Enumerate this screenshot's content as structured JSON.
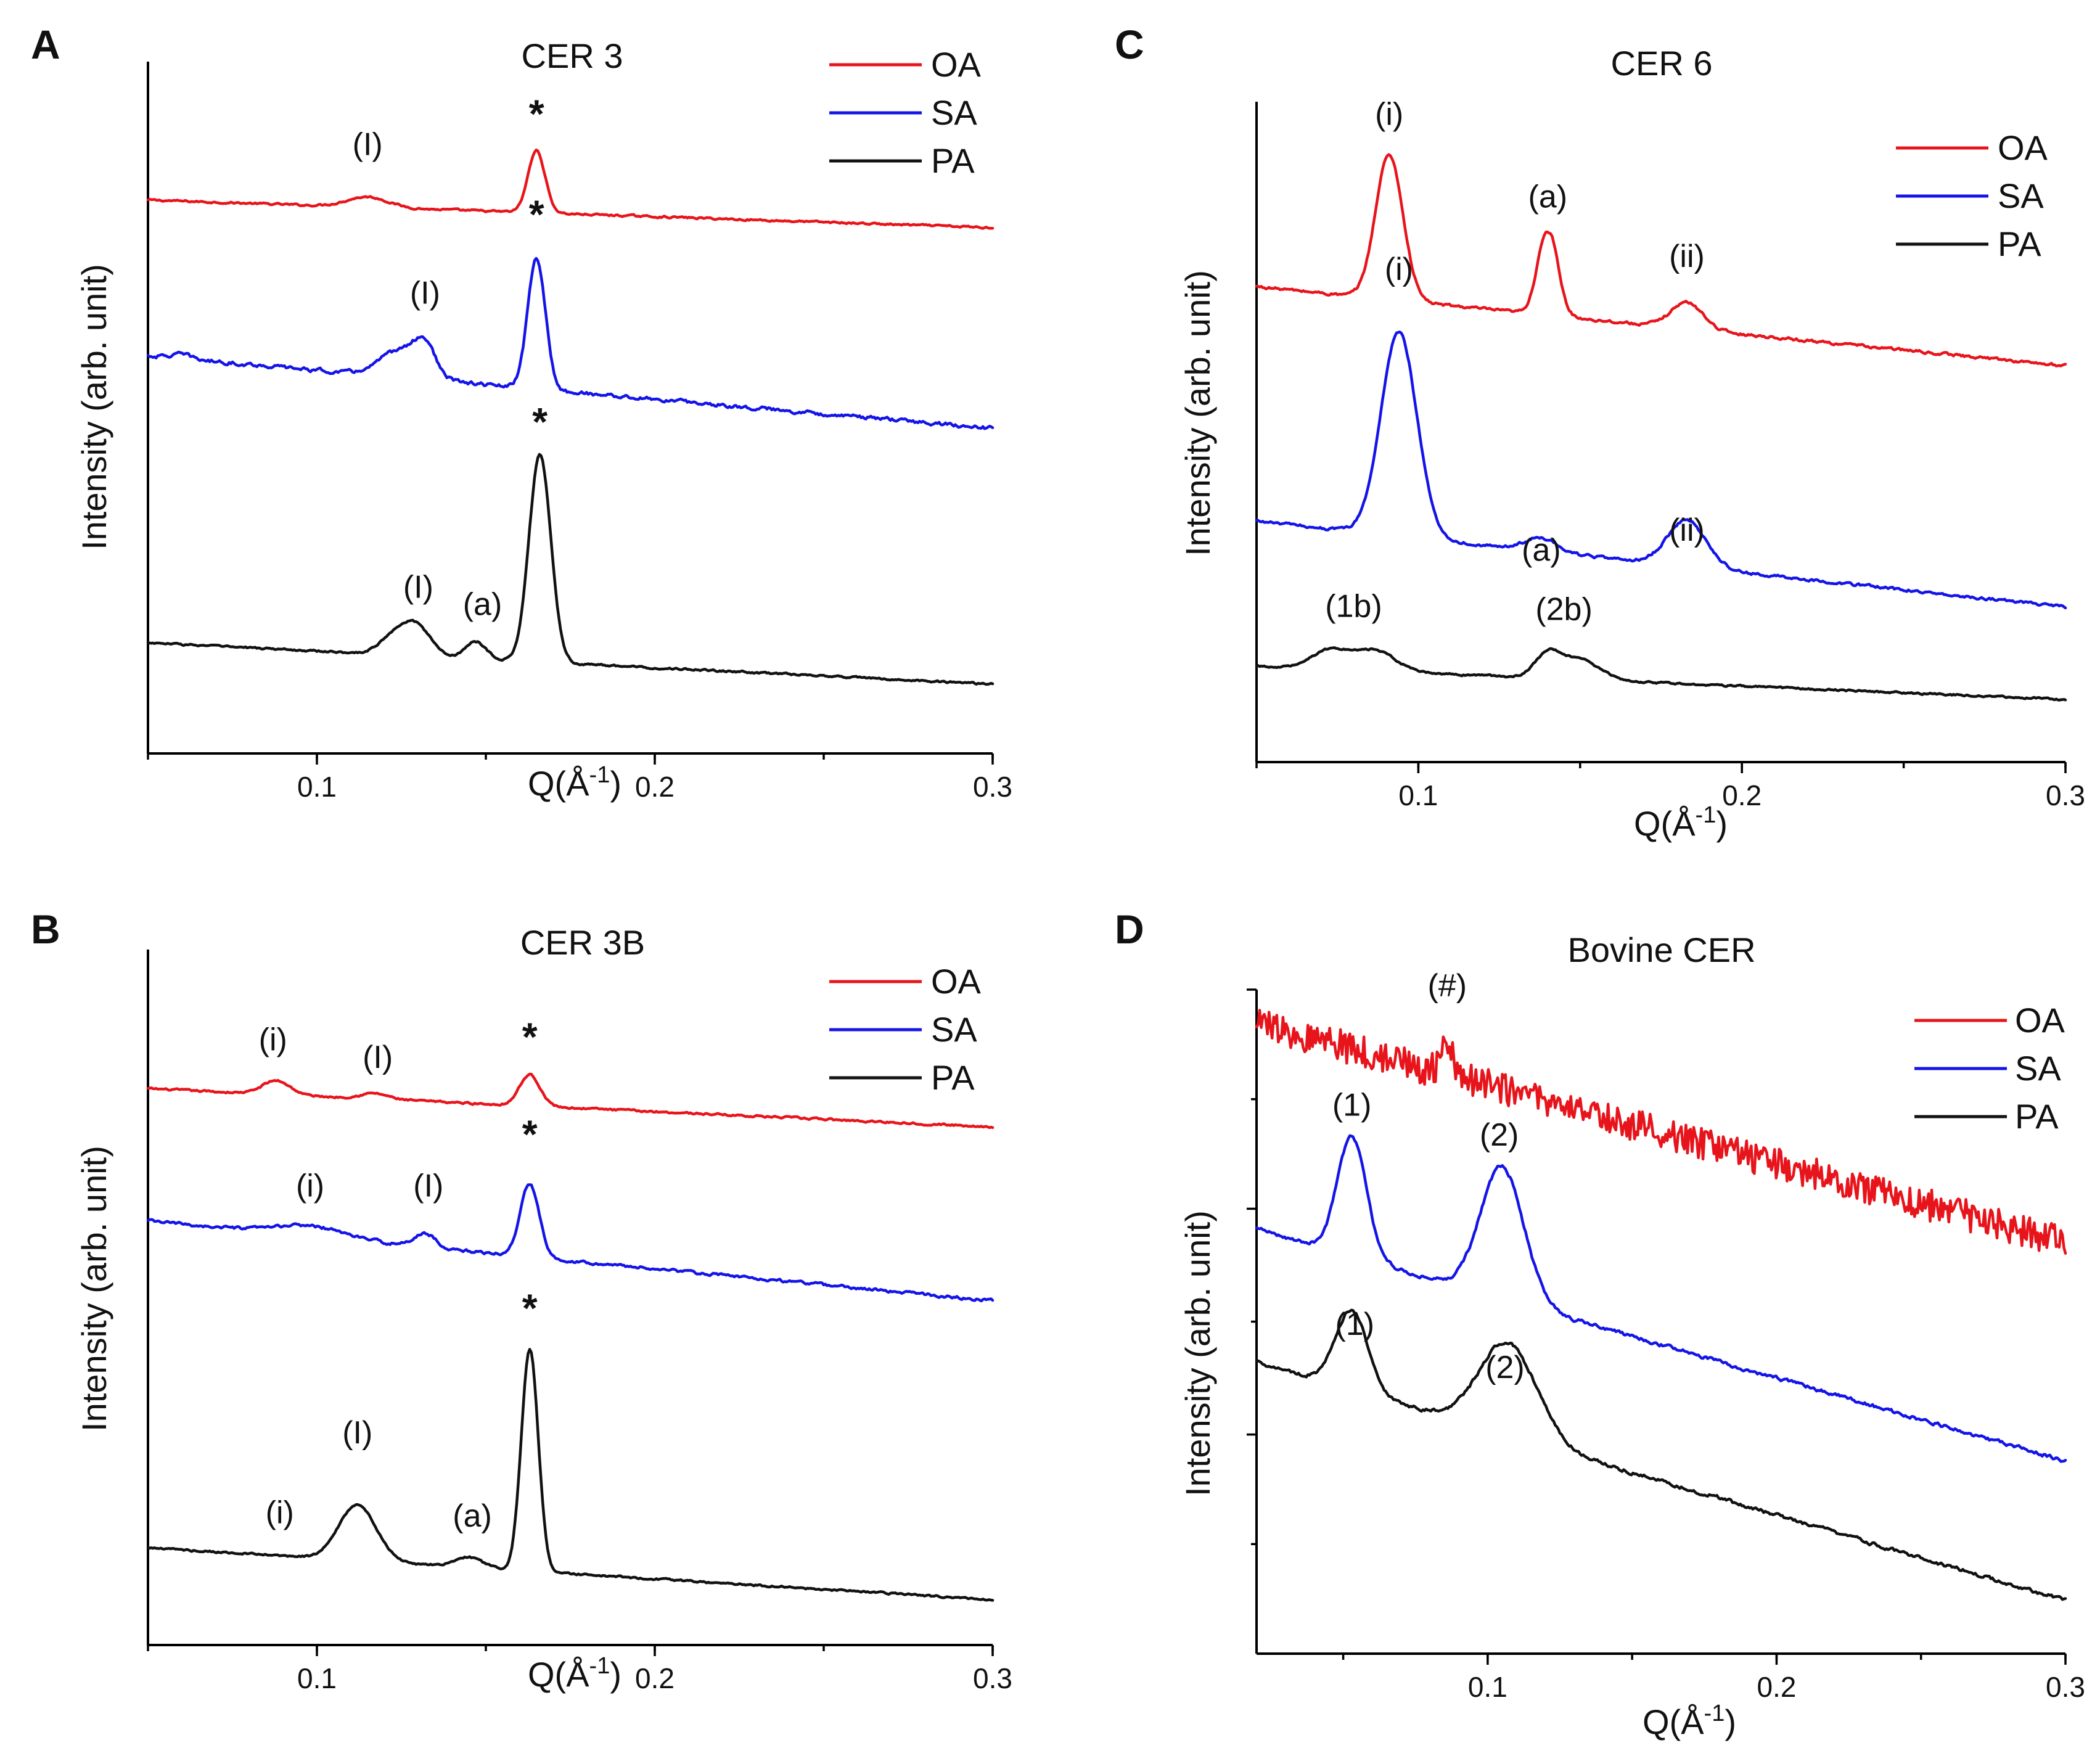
{
  "x_axis_label": "Q(Å",
  "x_axis_label_exp": "-1",
  "x_axis_label_close": ")",
  "y_axis_label": "Intensity (arb. unit)",
  "legend_labels": [
    "OA",
    "SA",
    "PA"
  ],
  "series_colors": {
    "OA": "#e8141b",
    "SA": "#1414e8",
    "PA": "#111111"
  },
  "chart_data": [
    {
      "panel": "A",
      "type": "line",
      "title": "CER 3",
      "xlabel": "Q(Å-1)",
      "ylabel": "Intensity (arb. unit)",
      "xlim": [
        0.05,
        0.3
      ],
      "ylim": [
        0,
        1
      ],
      "xticks": [
        0.1,
        0.2,
        0.3
      ],
      "xtick_labels": [
        "0.1",
        "0.2",
        "0.3"
      ],
      "yticks": [],
      "legend_position": "top-right",
      "series": [
        {
          "name": "OA",
          "start": 0.8,
          "end": 0.76,
          "noise": 0.002,
          "peaks": [
            [
              0.115,
              0.015,
              0.006
            ],
            [
              0.165,
              0.09,
              0.0025
            ]
          ]
        },
        {
          "name": "SA",
          "start": 0.575,
          "end": 0.47,
          "noise": 0.004,
          "peaks": [
            [
              0.06,
              0.006,
              0.003
            ],
            [
              0.125,
              0.04,
              0.006
            ],
            [
              0.132,
              0.04,
              0.003
            ],
            [
              0.165,
              0.19,
              0.0026
            ]
          ]
        },
        {
          "name": "PA",
          "start": 0.16,
          "end": 0.1,
          "noise": 0.002,
          "peaks": [
            [
              0.122,
              0.02,
              0.004
            ],
            [
              0.129,
              0.045,
              0.0045
            ],
            [
              0.147,
              0.025,
              0.003
            ],
            [
              0.166,
              0.3,
              0.0032
            ]
          ]
        }
      ],
      "annotations": [
        {
          "text": "(I)",
          "x": 0.115,
          "y": 0.865
        },
        {
          "text": "*",
          "x": 0.165,
          "y": 0.905,
          "style": "star"
        },
        {
          "text": "(I)",
          "x": 0.132,
          "y": 0.65
        },
        {
          "text": "*",
          "x": 0.165,
          "y": 0.76,
          "style": "star"
        },
        {
          "text": "(I)",
          "x": 0.13,
          "y": 0.225
        },
        {
          "text": "(a)",
          "x": 0.149,
          "y": 0.2
        },
        {
          "text": "*",
          "x": 0.166,
          "y": 0.46,
          "style": "star"
        }
      ]
    },
    {
      "panel": "B",
      "type": "line",
      "title": "CER 3B",
      "xlabel": "Q(Å-1)",
      "ylabel": "Intensity (arb. unit)",
      "xlim": [
        0.05,
        0.3
      ],
      "ylim": [
        0,
        1
      ],
      "xticks": [
        0.1,
        0.2,
        0.3
      ],
      "xtick_labels": [
        "0.1",
        "0.2",
        "0.3"
      ],
      "yticks": [],
      "legend_position": "top-right",
      "series": [
        {
          "name": "OA",
          "start": 0.8,
          "end": 0.745,
          "noise": 0.002,
          "peaks": [
            [
              0.088,
              0.02,
              0.004
            ],
            [
              0.117,
              0.008,
              0.004
            ],
            [
              0.163,
              0.045,
              0.003
            ]
          ]
        },
        {
          "name": "SA",
          "start": 0.61,
          "end": 0.495,
          "noise": 0.003,
          "peaks": [
            [
              0.098,
              0.015,
              0.01
            ],
            [
              0.132,
              0.02,
              0.003
            ],
            [
              0.163,
              0.105,
              0.0028
            ]
          ]
        },
        {
          "name": "PA",
          "start": 0.14,
          "end": 0.065,
          "noise": 0.002,
          "peaks": [
            [
              0.112,
              0.08,
              0.0055
            ],
            [
              0.145,
              0.015,
              0.004
            ],
            [
              0.163,
              0.32,
              0.0025
            ]
          ]
        }
      ],
      "annotations": [
        {
          "text": "(i)",
          "x": 0.087,
          "y": 0.855
        },
        {
          "text": "(I)",
          "x": 0.118,
          "y": 0.83
        },
        {
          "text": "*",
          "x": 0.163,
          "y": 0.855,
          "style": "star"
        },
        {
          "text": "(i)",
          "x": 0.098,
          "y": 0.645
        },
        {
          "text": "(I)",
          "x": 0.133,
          "y": 0.645
        },
        {
          "text": "*",
          "x": 0.163,
          "y": 0.715,
          "style": "star"
        },
        {
          "text": "(i)",
          "x": 0.089,
          "y": 0.175
        },
        {
          "text": "(I)",
          "x": 0.112,
          "y": 0.29
        },
        {
          "text": "(a)",
          "x": 0.146,
          "y": 0.17
        },
        {
          "text": "*",
          "x": 0.163,
          "y": 0.465,
          "style": "star"
        }
      ]
    },
    {
      "panel": "C",
      "type": "line",
      "title": "CER 6",
      "xlabel": "Q(Å-1)",
      "ylabel": "Intensity (arb. unit)",
      "xlim": [
        0.05,
        0.3
      ],
      "ylim": [
        0,
        1
      ],
      "xticks": [
        0.1,
        0.2,
        0.3
      ],
      "xtick_labels": [
        "0.1",
        "0.2",
        "0.3"
      ],
      "yticks": [],
      "legend_position": "top-right",
      "series": [
        {
          "name": "OA",
          "start": 0.72,
          "end": 0.6,
          "noise": 0.003,
          "peaks": [
            [
              0.091,
              0.22,
              0.0042
            ],
            [
              0.14,
              0.135,
              0.003
            ],
            [
              0.14,
              -0.01,
              0.001
            ],
            [
              0.183,
              0.04,
              0.005
            ]
          ]
        },
        {
          "name": "SA",
          "start": 0.365,
          "end": 0.235,
          "noise": 0.003,
          "peaks": [
            [
              0.094,
              0.31,
              0.0055
            ],
            [
              0.138,
              0.02,
              0.005
            ],
            [
              0.183,
              0.07,
              0.006
            ]
          ]
        },
        {
          "name": "PA",
          "start": 0.145,
          "end": 0.095,
          "noise": 0.002,
          "peaks": [
            [
              0.073,
              0.03,
              0.006
            ],
            [
              0.087,
              0.03,
              0.006
            ],
            [
              0.14,
              0.035,
              0.004
            ],
            [
              0.15,
              0.03,
              0.006
            ]
          ]
        }
      ],
      "annotations": [
        {
          "text": "(i)",
          "x": 0.091,
          "y": 0.965
        },
        {
          "text": "(a)",
          "x": 0.14,
          "y": 0.84
        },
        {
          "text": "(ii)",
          "x": 0.183,
          "y": 0.75
        },
        {
          "text": "(i)",
          "x": 0.094,
          "y": 0.73
        },
        {
          "text": "(a)",
          "x": 0.138,
          "y": 0.305
        },
        {
          "text": "(ii)",
          "x": 0.183,
          "y": 0.335
        },
        {
          "text": "(1b)",
          "x": 0.08,
          "y": 0.22
        },
        {
          "text": "(2b)",
          "x": 0.145,
          "y": 0.215
        }
      ]
    },
    {
      "panel": "D",
      "type": "line",
      "title": "Bovine CER",
      "xlabel": "Q(Å-1)",
      "ylabel": "Intensity (arb. unit)",
      "xlim": [
        0.02,
        0.3
      ],
      "ylim": [
        0,
        1
      ],
      "xticks": [
        0.1,
        0.2,
        0.3
      ],
      "xtick_labels": [
        "0.1",
        "0.2",
        "0.3"
      ],
      "yticks": [
        0.33,
        0.67,
        1.0
      ],
      "legend_position": "top-right",
      "series": [
        {
          "name": "OA",
          "start": 0.95,
          "end": 0.62,
          "noise": 0.022,
          "peaks": [
            [
              0.086,
              0.055,
              0.002
            ]
          ]
        },
        {
          "name": "SA",
          "start": 0.64,
          "end": 0.29,
          "noise": 0.004,
          "peaks": [
            [
              0.053,
              0.18,
              0.005
            ],
            [
              0.105,
              0.2,
              0.0075
            ]
          ]
        },
        {
          "name": "PA",
          "start": 0.44,
          "end": 0.08,
          "noise": 0.004,
          "peaks": [
            [
              0.053,
              0.12,
              0.0055
            ],
            [
              0.107,
              0.14,
              0.01
            ]
          ]
        }
      ],
      "annotations": [
        {
          "text": "(#)",
          "x": 0.086,
          "y": 0.99
        },
        {
          "text": "(1)",
          "x": 0.053,
          "y": 0.81
        },
        {
          "text": "(2)",
          "x": 0.104,
          "y": 0.765
        },
        {
          "text": "(1)",
          "x": 0.054,
          "y": 0.48
        },
        {
          "text": "(2)",
          "x": 0.106,
          "y": 0.415
        }
      ]
    }
  ]
}
